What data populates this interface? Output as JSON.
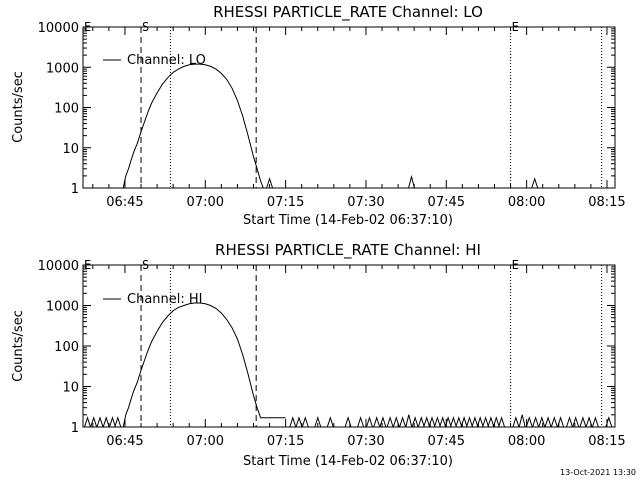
{
  "footer_timestamp": "13-Oct-2021 13:30",
  "chart_data": [
    {
      "type": "line",
      "title": "RHESSI PARTICLE_RATE Channel: LO",
      "xlabel": "Start Time (14-Feb-02 06:37:10)",
      "ylabel": "Counts/sec",
      "y_scale": "log",
      "ylim": [
        1,
        10000
      ],
      "y_ticks": [
        "1",
        "10",
        "100",
        "1000",
        "10000"
      ],
      "xlim": [
        "06:37:10",
        "08:16:30"
      ],
      "x_ticks": [
        "06:45",
        "07:00",
        "07:15",
        "07:30",
        "07:45",
        "08:00",
        "08:15"
      ],
      "legend": "Channel: LO",
      "legend_position": "top-left",
      "markers": {
        "S": "06:48:00",
        "E": "07:57:00"
      },
      "dashed_lines": [
        "06:48:00",
        "07:09:30"
      ],
      "dotted_lines": [
        "06:53:30",
        "07:57:00",
        "08:14:00"
      ],
      "series": [
        {
          "name": "Channel: LO",
          "points": [
            [
              "06:44:40",
              1
            ],
            [
              "06:45:10",
              2
            ],
            [
              "06:45:40",
              3
            ],
            [
              "06:46:10",
              5
            ],
            [
              "06:46:40",
              8
            ],
            [
              "06:47:20",
              13
            ],
            [
              "06:48:00",
              25
            ],
            [
              "06:48:40",
              45
            ],
            [
              "06:49:20",
              80
            ],
            [
              "06:50:00",
              130
            ],
            [
              "06:51:00",
              230
            ],
            [
              "06:52:00",
              380
            ],
            [
              "06:53:00",
              550
            ],
            [
              "06:54:00",
              750
            ],
            [
              "06:55:00",
              900
            ],
            [
              "06:56:00",
              1050
            ],
            [
              "06:57:00",
              1150
            ],
            [
              "06:58:00",
              1200
            ],
            [
              "06:59:00",
              1200
            ],
            [
              "07:00:00",
              1150
            ],
            [
              "07:01:00",
              1050
            ],
            [
              "07:02:00",
              900
            ],
            [
              "07:03:00",
              700
            ],
            [
              "07:04:00",
              500
            ],
            [
              "07:05:00",
              300
            ],
            [
              "07:06:00",
              150
            ],
            [
              "07:07:00",
              60
            ],
            [
              "07:08:00",
              20
            ],
            [
              "07:09:00",
              6
            ],
            [
              "07:09:40",
              3
            ],
            [
              "07:10:20",
              1.5
            ],
            [
              "07:10:50",
              1
            ]
          ],
          "spikes": [
            [
              "07:12:00",
              1.7
            ],
            [
              "07:38:30",
              1.9
            ],
            [
              "08:01:30",
              1.7
            ]
          ]
        }
      ]
    },
    {
      "type": "line",
      "title": "RHESSI PARTICLE_RATE Channel: HI",
      "xlabel": "Start Time (14-Feb-02 06:37:10)",
      "ylabel": "Counts/sec",
      "y_scale": "log",
      "ylim": [
        1,
        10000
      ],
      "y_ticks": [
        "1",
        "10",
        "100",
        "1000",
        "10000"
      ],
      "xlim": [
        "06:37:10",
        "08:16:30"
      ],
      "x_ticks": [
        "06:45",
        "07:00",
        "07:15",
        "07:30",
        "07:45",
        "08:00",
        "08:15"
      ],
      "legend": "Channel: HI",
      "legend_position": "top-left",
      "markers": {
        "S": "06:48:00",
        "E": "07:57:00"
      },
      "dashed_lines": [
        "06:48:00",
        "07:09:30"
      ],
      "dotted_lines": [
        "06:53:30",
        "07:57:00",
        "08:14:00"
      ],
      "series": [
        {
          "name": "Channel: HI",
          "points": [
            [
              "06:44:40",
              1
            ],
            [
              "06:45:10",
              2
            ],
            [
              "06:45:40",
              3
            ],
            [
              "06:46:10",
              5
            ],
            [
              "06:46:40",
              8
            ],
            [
              "06:47:20",
              13
            ],
            [
              "06:48:00",
              25
            ],
            [
              "06:48:40",
              45
            ],
            [
              "06:49:20",
              80
            ],
            [
              "06:50:00",
              130
            ],
            [
              "06:51:00",
              230
            ],
            [
              "06:52:00",
              380
            ],
            [
              "06:53:00",
              550
            ],
            [
              "06:54:00",
              750
            ],
            [
              "06:55:00",
              900
            ],
            [
              "06:56:00",
              1000
            ],
            [
              "06:57:00",
              1100
            ],
            [
              "06:58:00",
              1150
            ],
            [
              "06:59:00",
              1150
            ],
            [
              "07:00:00",
              1100
            ],
            [
              "07:01:00",
              1000
            ],
            [
              "07:02:00",
              850
            ],
            [
              "07:03:00",
              650
            ],
            [
              "07:04:00",
              450
            ],
            [
              "07:05:00",
              280
            ],
            [
              "07:06:00",
              150
            ],
            [
              "07:07:00",
              60
            ],
            [
              "07:08:00",
              20
            ],
            [
              "07:09:00",
              6
            ],
            [
              "07:09:40",
              3
            ],
            [
              "07:10:20",
              1.7
            ],
            [
              "07:15:00",
              1.7
            ]
          ],
          "spikes": [
            [
              "06:38:00",
              1.7
            ],
            [
              "06:39:10",
              1.7
            ],
            [
              "06:40:20",
              1.7
            ],
            [
              "06:41:30",
              1.7
            ],
            [
              "06:42:40",
              1.7
            ],
            [
              "06:43:40",
              1.7
            ],
            [
              "07:16:20",
              1.7
            ],
            [
              "07:17:30",
              1.7
            ],
            [
              "07:18:40",
              1.7
            ],
            [
              "07:21:00",
              1.7
            ],
            [
              "07:23:20",
              1.7
            ],
            [
              "07:26:40",
              1.7
            ],
            [
              "07:29:00",
              1.7
            ],
            [
              "07:30:40",
              1.7
            ],
            [
              "07:32:00",
              1.7
            ],
            [
              "07:33:10",
              1.7
            ],
            [
              "07:34:30",
              1.7
            ],
            [
              "07:35:40",
              1.7
            ],
            [
              "07:36:50",
              1.7
            ],
            [
              "07:38:00",
              2
            ],
            [
              "07:39:10",
              1.7
            ],
            [
              "07:40:20",
              1.7
            ],
            [
              "07:41:20",
              1.7
            ],
            [
              "07:42:20",
              1.7
            ],
            [
              "07:43:20",
              1.7
            ],
            [
              "07:44:20",
              1.7
            ],
            [
              "07:45:20",
              1.7
            ],
            [
              "07:46:20",
              1.7
            ],
            [
              "07:47:20",
              1.7
            ],
            [
              "07:48:20",
              1.7
            ],
            [
              "07:49:20",
              1.7
            ],
            [
              "07:50:20",
              1.7
            ],
            [
              "07:51:20",
              1.7
            ],
            [
              "07:52:20",
              1.7
            ],
            [
              "07:53:20",
              1.7
            ],
            [
              "07:54:20",
              1.7
            ],
            [
              "07:55:20",
              1.7
            ],
            [
              "07:58:00",
              1.7
            ],
            [
              "07:59:10",
              2
            ],
            [
              "08:00:30",
              1.7
            ],
            [
              "08:01:40",
              1.7
            ],
            [
              "08:02:50",
              1.7
            ],
            [
              "08:04:00",
              1.7
            ],
            [
              "08:05:10",
              1.7
            ],
            [
              "08:06:20",
              1.7
            ],
            [
              "08:08:00",
              1.7
            ],
            [
              "08:09:10",
              1.7
            ],
            [
              "08:10:30",
              1.7
            ],
            [
              "08:11:40",
              1.7
            ],
            [
              "08:12:50",
              1.7
            ],
            [
              "08:15:20",
              1.7
            ]
          ]
        }
      ]
    }
  ]
}
